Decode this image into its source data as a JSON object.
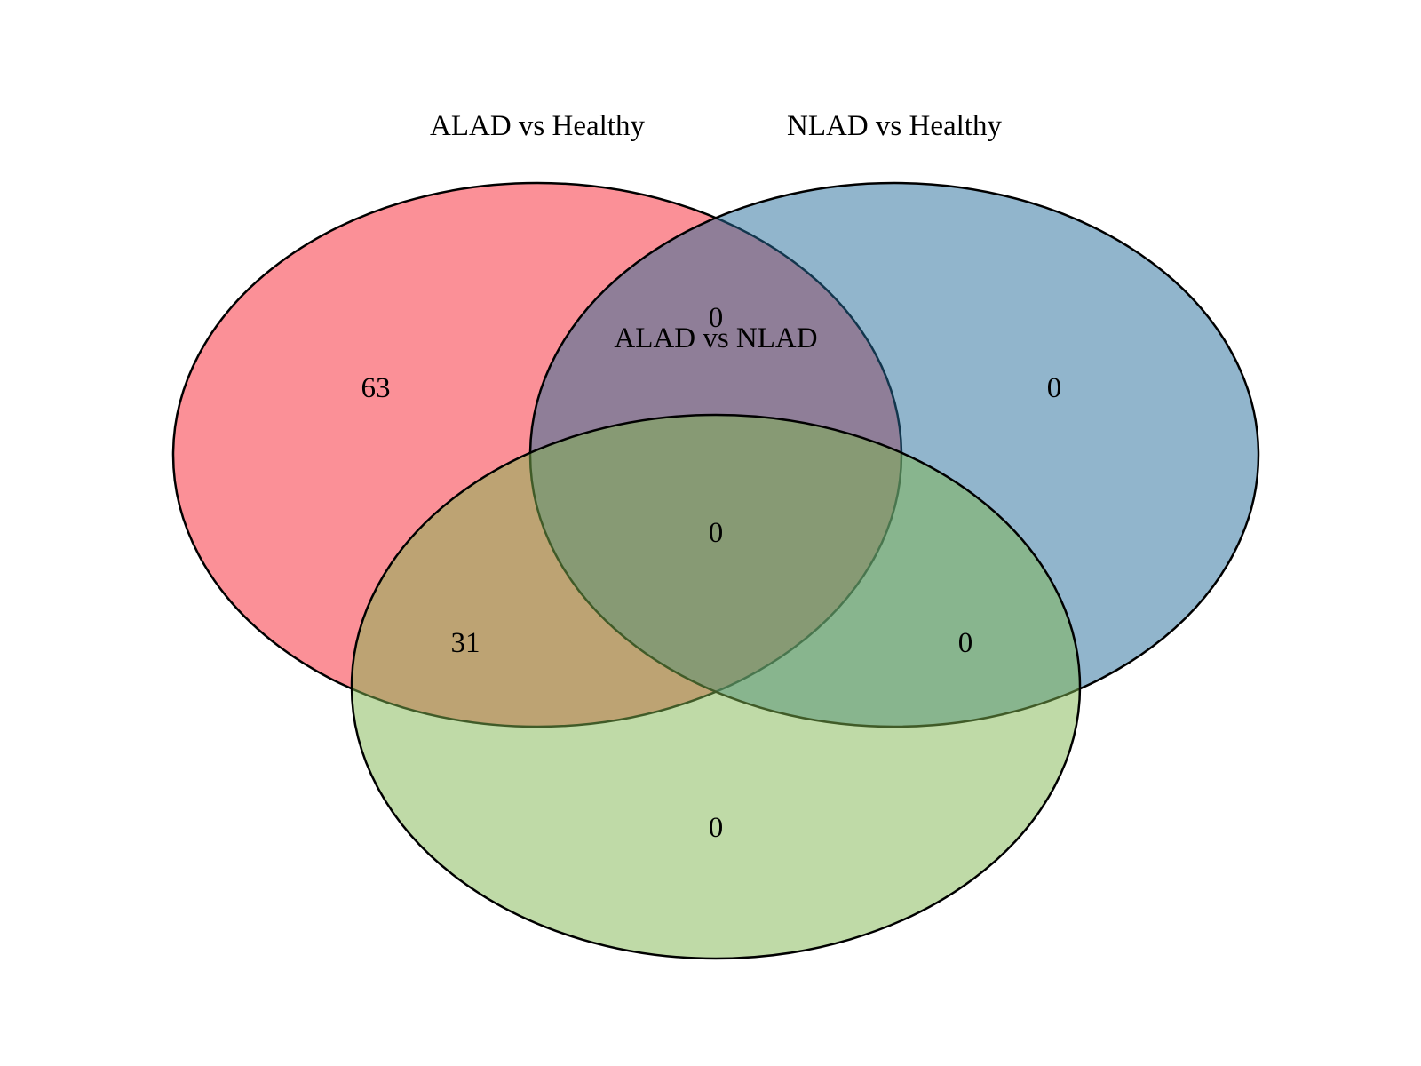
{
  "sets": [
    {
      "id": "a",
      "label": "ALAD vs Healthy",
      "color": "#f7222f"
    },
    {
      "id": "b",
      "label": "NLAD vs Healthy",
      "color": "#236b99"
    },
    {
      "id": "c",
      "label": "ALAD vs NLAD",
      "color": "#80b650"
    }
  ],
  "regions": {
    "a_only": "63",
    "b_only": "0",
    "c_only": "0",
    "ab_only": "0",
    "ac_only": "31",
    "bc_only": "0",
    "abc": "0"
  }
}
